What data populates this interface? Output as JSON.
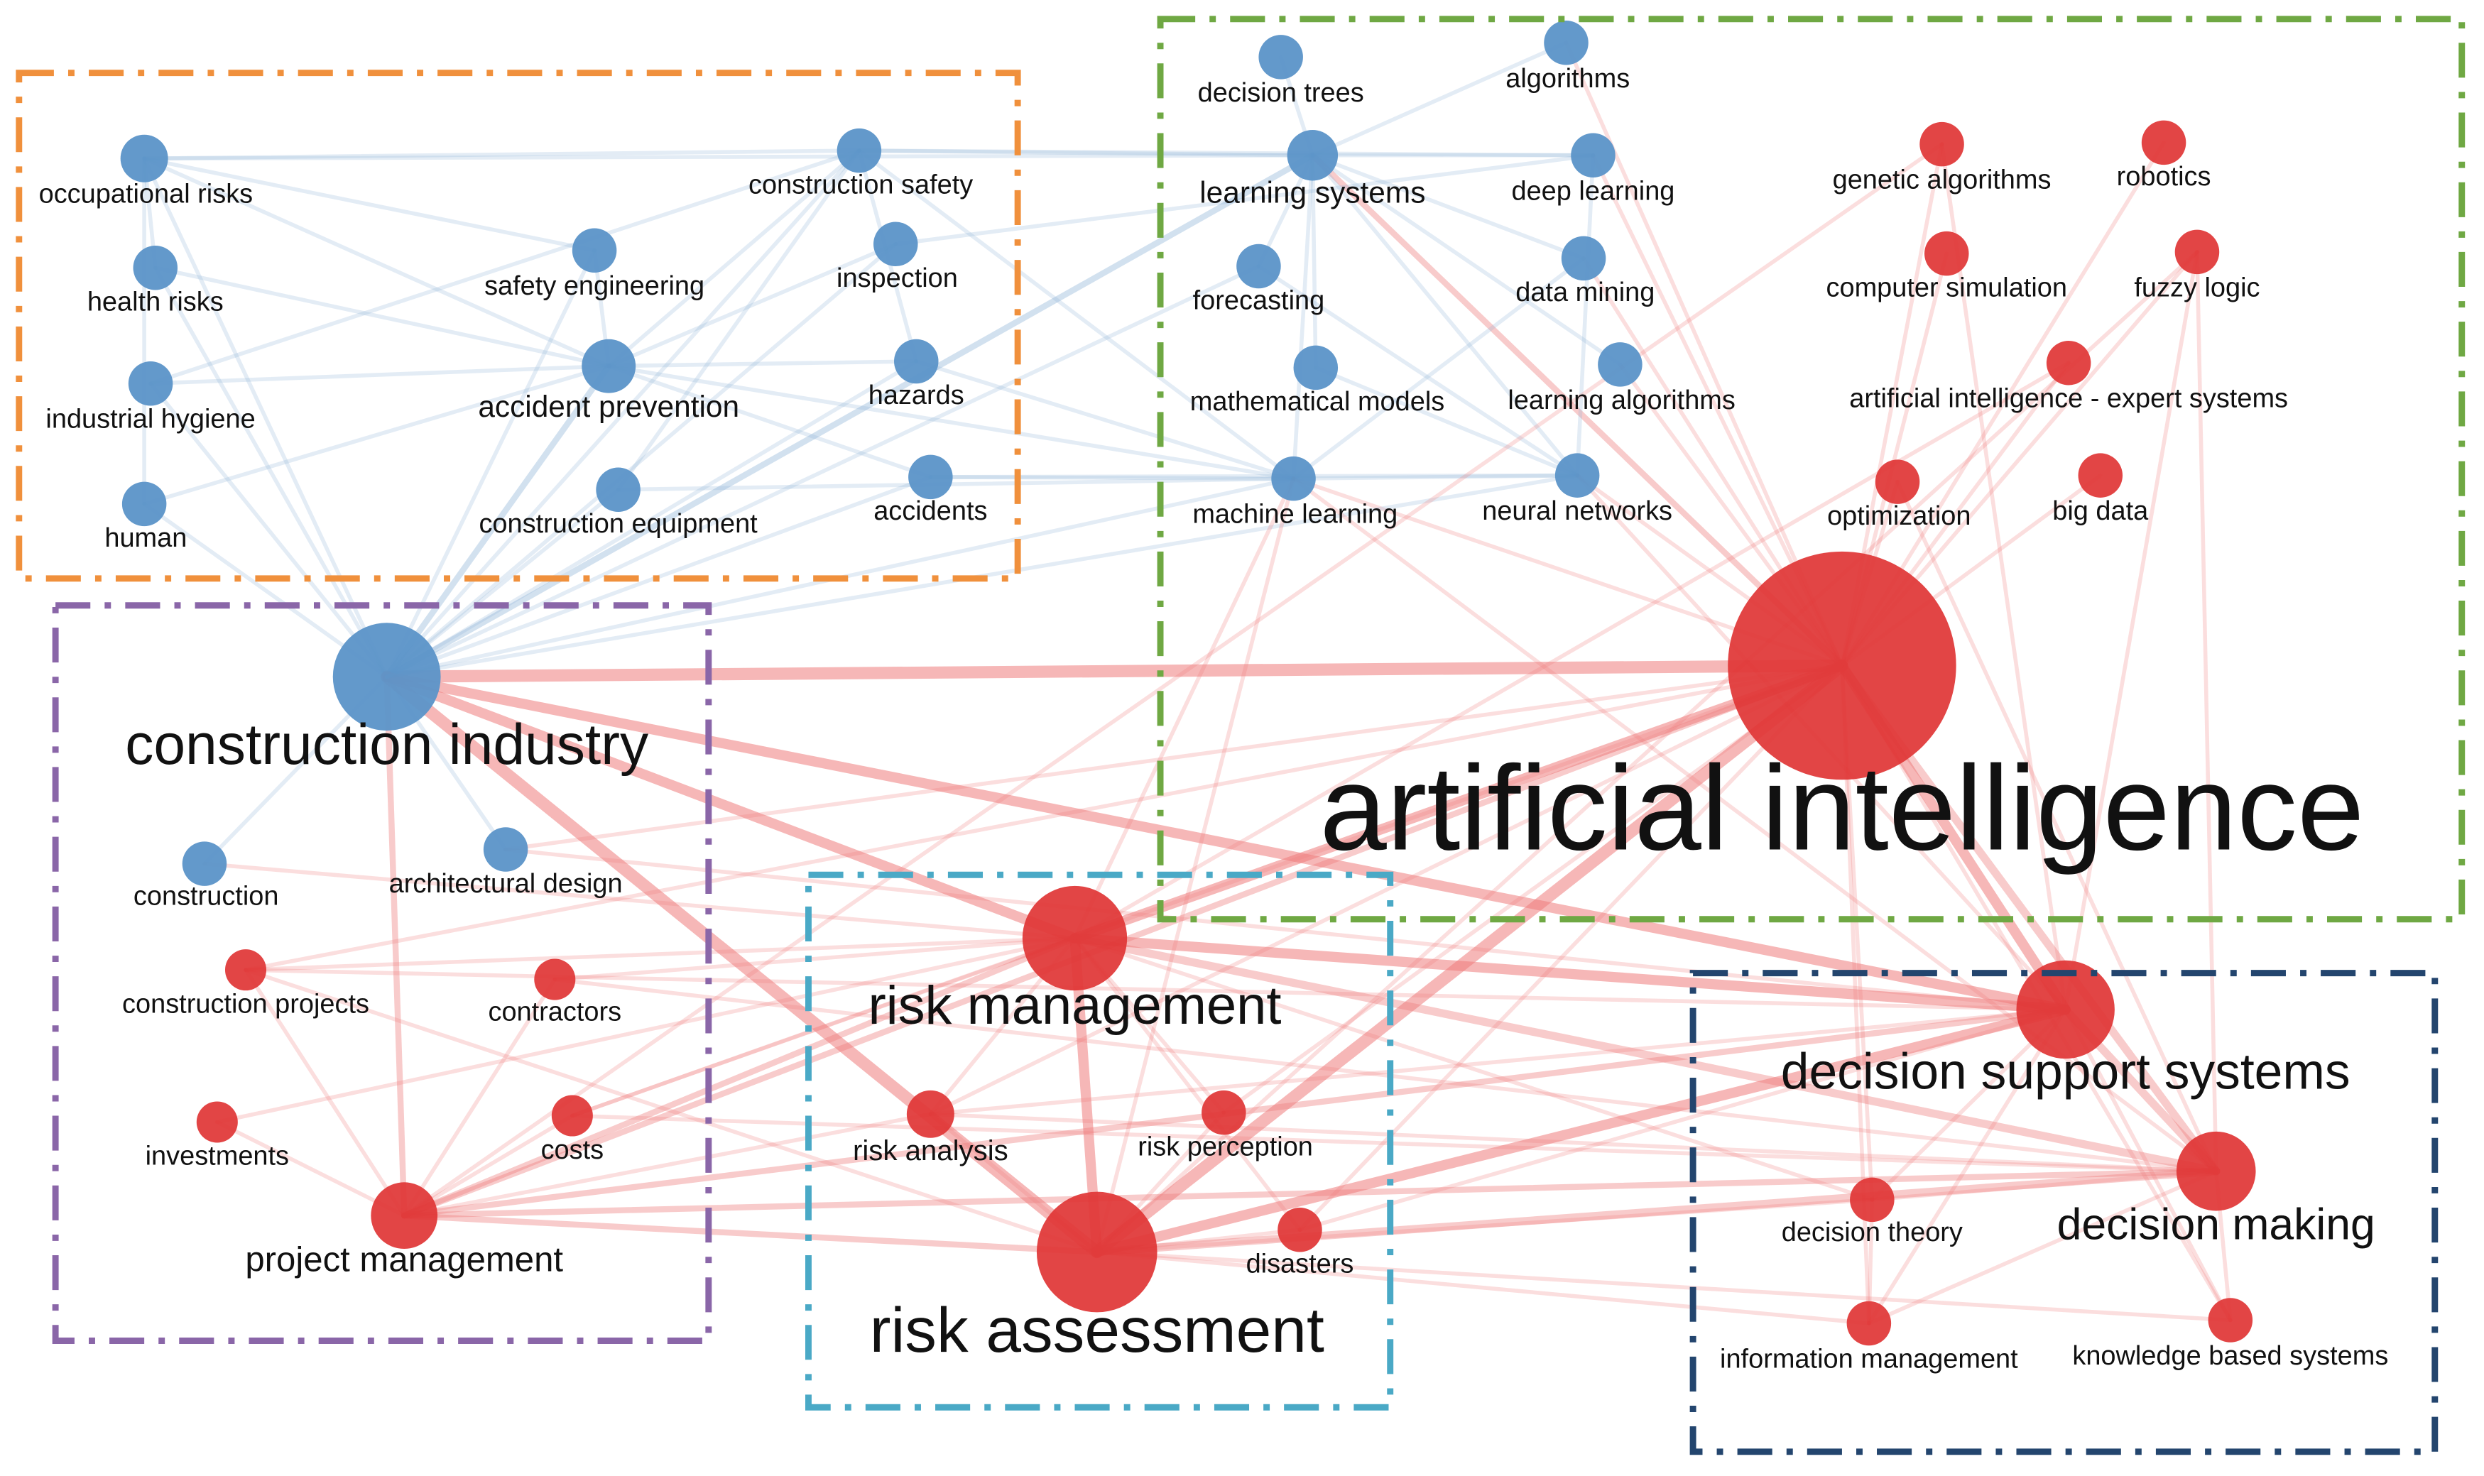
{
  "colors": {
    "blue_cluster": "#5b93c8",
    "red_cluster": "#e03535",
    "blue_edge": "#8fb4d8",
    "red_edge": "#ee7c7c",
    "grey_edge": "#c8c8c8",
    "box_orange": "#f0903c",
    "box_green": "#6fa843",
    "box_purple": "#8a66a8",
    "box_teal": "#4aa9c6",
    "box_navy": "#23456e"
  },
  "groups": [
    {
      "id": "safety",
      "color": "box_orange"
    },
    {
      "id": "ai-methods",
      "color": "box_green"
    },
    {
      "id": "construction",
      "color": "box_purple"
    },
    {
      "id": "risk",
      "color": "box_teal"
    },
    {
      "id": "decision",
      "color": "box_navy"
    }
  ],
  "nodes": [
    {
      "id": "occupational-risks",
      "label": "occupational risks",
      "cluster": "blue",
      "weight": 1
    },
    {
      "id": "health-risks",
      "label": "health risks",
      "cluster": "blue",
      "weight": 1
    },
    {
      "id": "industrial-hygiene",
      "label": "industrial hygiene",
      "cluster": "blue",
      "weight": 1
    },
    {
      "id": "human",
      "label": "human",
      "cluster": "blue",
      "weight": 1
    },
    {
      "id": "safety-engineering",
      "label": "safety engineering",
      "cluster": "blue",
      "weight": 1
    },
    {
      "id": "accident-prevention",
      "label": "accident prevention",
      "cluster": "blue",
      "weight": 2
    },
    {
      "id": "construction-equipment",
      "label": "construction equipment",
      "cluster": "blue",
      "weight": 1
    },
    {
      "id": "construction-safety",
      "label": "construction safety",
      "cluster": "blue",
      "weight": 1
    },
    {
      "id": "inspection",
      "label": "inspection",
      "cluster": "blue",
      "weight": 1
    },
    {
      "id": "hazards",
      "label": "hazards",
      "cluster": "blue",
      "weight": 1
    },
    {
      "id": "accidents",
      "label": "accidents",
      "cluster": "blue",
      "weight": 1
    },
    {
      "id": "decision-trees",
      "label": "decision trees",
      "cluster": "blue",
      "weight": 1
    },
    {
      "id": "algorithms",
      "label": "algorithms",
      "cluster": "blue",
      "weight": 1
    },
    {
      "id": "learning-systems",
      "label": "learning systems",
      "cluster": "blue",
      "weight": 2
    },
    {
      "id": "deep-learning",
      "label": "deep learning",
      "cluster": "blue",
      "weight": 1
    },
    {
      "id": "forecasting",
      "label": "forecasting",
      "cluster": "blue",
      "weight": 1
    },
    {
      "id": "data-mining",
      "label": "data mining",
      "cluster": "blue",
      "weight": 1
    },
    {
      "id": "mathematical-models",
      "label": "mathematical models",
      "cluster": "blue",
      "weight": 1
    },
    {
      "id": "learning-algorithms",
      "label": "learning algorithms",
      "cluster": "blue",
      "weight": 1
    },
    {
      "id": "machine-learning",
      "label": "machine learning",
      "cluster": "blue",
      "weight": 1
    },
    {
      "id": "neural-networks",
      "label": "neural networks",
      "cluster": "blue",
      "weight": 1
    },
    {
      "id": "genetic-algorithms",
      "label": "genetic algorithms",
      "cluster": "red",
      "weight": 1
    },
    {
      "id": "robotics",
      "label": "robotics",
      "cluster": "red",
      "weight": 1
    },
    {
      "id": "computer-simulation",
      "label": "computer simulation",
      "cluster": "red",
      "weight": 1
    },
    {
      "id": "fuzzy-logic",
      "label": "fuzzy logic",
      "cluster": "red",
      "weight": 1
    },
    {
      "id": "ai-expert-systems",
      "label": "artificial intelligence - expert systems",
      "cluster": "red",
      "weight": 1
    },
    {
      "id": "optimization",
      "label": "optimization",
      "cluster": "red",
      "weight": 1
    },
    {
      "id": "big-data",
      "label": "big data",
      "cluster": "red",
      "weight": 1
    },
    {
      "id": "construction-industry",
      "label": "construction industry",
      "cluster": "blue",
      "weight": 5
    },
    {
      "id": "artificial-intelligence",
      "label": "artificial intelligence",
      "cluster": "red",
      "weight": 10
    },
    {
      "id": "construction",
      "label": "construction",
      "cluster": "blue",
      "weight": 1
    },
    {
      "id": "architectural-design",
      "label": "architectural design",
      "cluster": "blue",
      "weight": 1
    },
    {
      "id": "construction-projects",
      "label": "construction projects",
      "cluster": "red",
      "weight": 1
    },
    {
      "id": "contractors",
      "label": "contractors",
      "cluster": "red",
      "weight": 1
    },
    {
      "id": "investments",
      "label": "investments",
      "cluster": "red",
      "weight": 1
    },
    {
      "id": "costs",
      "label": "costs",
      "cluster": "red",
      "weight": 1
    },
    {
      "id": "project-management",
      "label": "project management",
      "cluster": "red",
      "weight": 2
    },
    {
      "id": "risk-management",
      "label": "risk management",
      "cluster": "red",
      "weight": 4
    },
    {
      "id": "risk-analysis",
      "label": "risk analysis",
      "cluster": "red",
      "weight": 1
    },
    {
      "id": "risk-perception",
      "label": "risk perception",
      "cluster": "red",
      "weight": 1
    },
    {
      "id": "risk-assessment",
      "label": "risk assessment",
      "cluster": "red",
      "weight": 5
    },
    {
      "id": "disasters",
      "label": "disasters",
      "cluster": "red",
      "weight": 1
    },
    {
      "id": "decision-support-systems",
      "label": "decision support systems",
      "cluster": "red",
      "weight": 4
    },
    {
      "id": "decision-theory",
      "label": "decision theory",
      "cluster": "red",
      "weight": 1
    },
    {
      "id": "decision-making",
      "label": "decision making",
      "cluster": "red",
      "weight": 3
    },
    {
      "id": "information-management",
      "label": "information management",
      "cluster": "red",
      "weight": 1
    },
    {
      "id": "knowledge-based-systems",
      "label": "knowledge based systems",
      "cluster": "red",
      "weight": 1
    }
  ],
  "edges": [
    [
      "construction-industry",
      "artificial-intelligence"
    ],
    [
      "artificial-intelligence",
      "risk-management"
    ],
    [
      "artificial-intelligence",
      "risk-assessment"
    ],
    [
      "artificial-intelligence",
      "decision-support-systems"
    ],
    [
      "artificial-intelligence",
      "decision-making"
    ],
    [
      "artificial-intelligence",
      "project-management"
    ],
    [
      "artificial-intelligence",
      "genetic-algorithms"
    ],
    [
      "artificial-intelligence",
      "robotics"
    ],
    [
      "artificial-intelligence",
      "computer-simulation"
    ],
    [
      "artificial-intelligence",
      "fuzzy-logic"
    ],
    [
      "artificial-intelligence",
      "ai-expert-systems"
    ],
    [
      "artificial-intelligence",
      "optimization"
    ],
    [
      "artificial-intelligence",
      "big-data"
    ],
    [
      "artificial-intelligence",
      "decision-theory"
    ],
    [
      "artificial-intelligence",
      "information-management"
    ],
    [
      "artificial-intelligence",
      "knowledge-based-systems"
    ],
    [
      "artificial-intelligence",
      "risk-analysis"
    ],
    [
      "artificial-intelligence",
      "disasters"
    ],
    [
      "artificial-intelligence",
      "construction-projects"
    ],
    [
      "artificial-intelligence",
      "costs"
    ],
    [
      "artificial-intelligence",
      "machine-learning"
    ],
    [
      "artificial-intelligence",
      "neural-networks"
    ],
    [
      "artificial-intelligence",
      "learning-systems"
    ],
    [
      "artificial-intelligence",
      "data-mining"
    ],
    [
      "artificial-intelligence",
      "learning-algorithms"
    ],
    [
      "artificial-intelligence",
      "deep-learning"
    ],
    [
      "artificial-intelligence",
      "algorithms"
    ],
    [
      "artificial-intelligence",
      "risk-perception"
    ],
    [
      "construction-industry",
      "occupational-risks"
    ],
    [
      "construction-industry",
      "health-risks"
    ],
    [
      "construction-industry",
      "industrial-hygiene"
    ],
    [
      "construction-industry",
      "human"
    ],
    [
      "construction-industry",
      "safety-engineering"
    ],
    [
      "construction-industry",
      "accident-prevention"
    ],
    [
      "construction-industry",
      "construction-equipment"
    ],
    [
      "construction-industry",
      "construction-safety"
    ],
    [
      "construction-industry",
      "inspection"
    ],
    [
      "construction-industry",
      "hazards"
    ],
    [
      "construction-industry",
      "accidents"
    ],
    [
      "construction-industry",
      "construction"
    ],
    [
      "construction-industry",
      "architectural-design"
    ],
    [
      "construction-industry",
      "learning-systems"
    ],
    [
      "construction-industry",
      "machine-learning"
    ],
    [
      "construction-industry",
      "risk-management"
    ],
    [
      "construction-industry",
      "risk-assessment"
    ],
    [
      "construction-industry",
      "project-management"
    ],
    [
      "construction-industry",
      "decision-support-systems"
    ],
    [
      "construction-industry",
      "forecasting"
    ],
    [
      "construction-industry",
      "neural-networks"
    ],
    [
      "occupational-risks",
      "construction-safety"
    ],
    [
      "occupational-risks",
      "learning-systems"
    ],
    [
      "occupational-risks",
      "accident-prevention"
    ],
    [
      "occupational-risks",
      "health-risks"
    ],
    [
      "occupational-risks",
      "human"
    ],
    [
      "occupational-risks",
      "safety-engineering"
    ],
    [
      "health-risks",
      "accident-prevention"
    ],
    [
      "industrial-hygiene",
      "accident-prevention"
    ],
    [
      "industrial-hygiene",
      "construction-safety"
    ],
    [
      "human",
      "accident-prevention"
    ],
    [
      "accident-prevention",
      "construction-safety"
    ],
    [
      "accident-prevention",
      "hazards"
    ],
    [
      "accident-prevention",
      "accidents"
    ],
    [
      "accident-prevention",
      "machine-learning"
    ],
    [
      "accident-prevention",
      "safety-engineering"
    ],
    [
      "accident-prevention",
      "inspection"
    ],
    [
      "construction-safety",
      "learning-systems"
    ],
    [
      "construction-safety",
      "deep-learning"
    ],
    [
      "construction-safety",
      "machine-learning"
    ],
    [
      "construction-safety",
      "construction-equipment"
    ],
    [
      "construction-safety",
      "hazards"
    ],
    [
      "inspection",
      "deep-learning"
    ],
    [
      "hazards",
      "machine-learning"
    ],
    [
      "accidents",
      "neural-networks"
    ],
    [
      "accidents",
      "machine-learning"
    ],
    [
      "construction-equipment",
      "machine-learning"
    ],
    [
      "learning-systems",
      "deep-learning"
    ],
    [
      "learning-systems",
      "machine-learning"
    ],
    [
      "learning-systems",
      "decision-trees"
    ],
    [
      "learning-systems",
      "neural-networks"
    ],
    [
      "learning-systems",
      "data-mining"
    ],
    [
      "learning-systems",
      "forecasting"
    ],
    [
      "learning-systems",
      "mathematical-models"
    ],
    [
      "learning-systems",
      "learning-algorithms"
    ],
    [
      "algorithms",
      "learning-systems"
    ],
    [
      "deep-learning",
      "neural-networks"
    ],
    [
      "forecasting",
      "neural-networks"
    ],
    [
      "data-mining",
      "machine-learning"
    ],
    [
      "mathematical-models",
      "neural-networks"
    ],
    [
      "machine-learning",
      "neural-networks"
    ],
    [
      "construction-projects",
      "risk-management"
    ],
    [
      "construction-projects",
      "project-management"
    ],
    [
      "construction-projects",
      "risk-assessment"
    ],
    [
      "construction-projects",
      "decision-support-systems"
    ],
    [
      "contractors",
      "risk-management"
    ],
    [
      "contractors",
      "project-management"
    ],
    [
      "contractors",
      "decision-making"
    ],
    [
      "investments",
      "risk-management"
    ],
    [
      "investments",
      "project-management"
    ],
    [
      "costs",
      "risk-management"
    ],
    [
      "costs",
      "project-management"
    ],
    [
      "costs",
      "decision-making"
    ],
    [
      "project-management",
      "risk-management"
    ],
    [
      "project-management",
      "risk-assessment"
    ],
    [
      "project-management",
      "decision-support-systems"
    ],
    [
      "project-management",
      "decision-making"
    ],
    [
      "project-management",
      "risk-analysis"
    ],
    [
      "risk-management",
      "risk-assessment"
    ],
    [
      "risk-management",
      "risk-analysis"
    ],
    [
      "risk-management",
      "risk-perception"
    ],
    [
      "risk-management",
      "decision-support-systems"
    ],
    [
      "risk-management",
      "decision-making"
    ],
    [
      "risk-management",
      "disasters"
    ],
    [
      "risk-management",
      "decision-theory"
    ],
    [
      "risk-assessment",
      "risk-analysis"
    ],
    [
      "risk-assessment",
      "risk-perception"
    ],
    [
      "risk-assessment",
      "disasters"
    ],
    [
      "risk-assessment",
      "decision-support-systems"
    ],
    [
      "risk-assessment",
      "decision-making"
    ],
    [
      "risk-assessment",
      "decision-theory"
    ],
    [
      "risk-assessment",
      "information-management"
    ],
    [
      "risk-assessment",
      "knowledge-based-systems"
    ],
    [
      "risk-analysis",
      "decision-making"
    ],
    [
      "risk-analysis",
      "decision-support-systems"
    ],
    [
      "disasters",
      "decision-support-systems"
    ],
    [
      "decision-support-systems",
      "decision-making"
    ],
    [
      "decision-support-systems",
      "decision-theory"
    ],
    [
      "decision-support-systems",
      "information-management"
    ],
    [
      "decision-support-systems",
      "knowledge-based-systems"
    ],
    [
      "decision-making",
      "decision-theory"
    ],
    [
      "decision-making",
      "information-management"
    ],
    [
      "decision-making",
      "knowledge-based-systems"
    ],
    [
      "decision-theory",
      "information-management"
    ],
    [
      "decision-support-systems",
      "fuzzy-logic"
    ],
    [
      "decision-making",
      "fuzzy-logic"
    ],
    [
      "decision-support-systems",
      "genetic-algorithms"
    ],
    [
      "decision-making",
      "optimization"
    ],
    [
      "risk-assessment",
      "fuzzy-logic"
    ],
    [
      "risk-management",
      "ai-expert-systems"
    ],
    [
      "project-management",
      "genetic-algorithms"
    ],
    [
      "risk-management",
      "machine-learning"
    ],
    [
      "risk-assessment",
      "machine-learning"
    ],
    [
      "construction",
      "risk-management"
    ],
    [
      "architectural-design",
      "artificial-intelligence"
    ],
    [
      "architectural-design",
      "decision-support-systems"
    ],
    [
      "decision-support-systems",
      "neural-networks"
    ],
    [
      "decision-making",
      "machine-learning"
    ]
  ]
}
